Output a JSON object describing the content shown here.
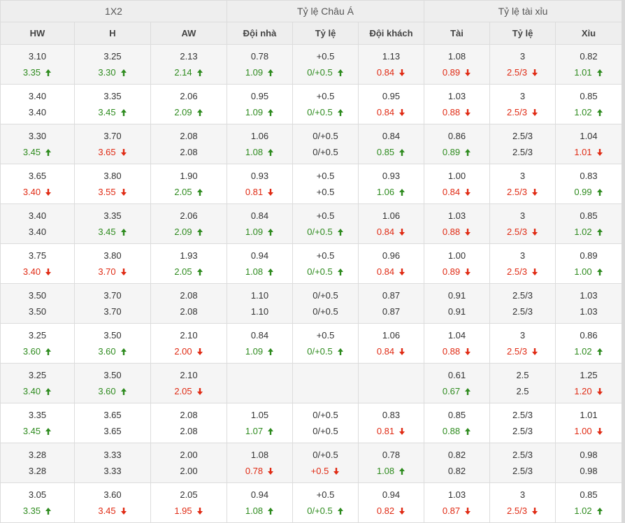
{
  "groups": [
    "1X2",
    "Tỷ lệ Châu Á",
    "Tỷ lệ tài xỉu"
  ],
  "columns": [
    "HW",
    "H",
    "AW",
    "Đội nhà",
    "Tỷ lệ",
    "Đội khách",
    "Tài",
    "Tỷ lệ",
    "Xỉu"
  ],
  "colors": {
    "up": "#2e8b1e",
    "down": "#e02a13",
    "header_bg": "#eeeeee",
    "row_alt_bg": "#f5f5f5"
  },
  "rows": [
    {
      "cells": [
        {
          "open": "3.10",
          "live": "3.35",
          "dir": "up"
        },
        {
          "open": "3.25",
          "live": "3.30",
          "dir": "up"
        },
        {
          "open": "2.13",
          "live": "2.14",
          "dir": "up"
        },
        {
          "open": "0.78",
          "live": "1.09",
          "dir": "up"
        },
        {
          "open": "+0.5",
          "live": "0/+0.5",
          "dir": "up"
        },
        {
          "open": "1.13",
          "live": "0.84",
          "dir": "down"
        },
        {
          "open": "1.08",
          "live": "0.89",
          "dir": "down"
        },
        {
          "open": "3",
          "live": "2.5/3",
          "dir": "down"
        },
        {
          "open": "0.82",
          "live": "1.01",
          "dir": "up"
        }
      ]
    },
    {
      "cells": [
        {
          "open": "3.40",
          "live": "3.40",
          "dir": ""
        },
        {
          "open": "3.35",
          "live": "3.45",
          "dir": "up"
        },
        {
          "open": "2.06",
          "live": "2.09",
          "dir": "up"
        },
        {
          "open": "0.95",
          "live": "1.09",
          "dir": "up"
        },
        {
          "open": "+0.5",
          "live": "0/+0.5",
          "dir": "up"
        },
        {
          "open": "0.95",
          "live": "0.84",
          "dir": "down"
        },
        {
          "open": "1.03",
          "live": "0.88",
          "dir": "down"
        },
        {
          "open": "3",
          "live": "2.5/3",
          "dir": "down"
        },
        {
          "open": "0.85",
          "live": "1.02",
          "dir": "up"
        }
      ]
    },
    {
      "cells": [
        {
          "open": "3.30",
          "live": "3.45",
          "dir": "up"
        },
        {
          "open": "3.70",
          "live": "3.65",
          "dir": "down"
        },
        {
          "open": "2.08",
          "live": "2.08",
          "dir": ""
        },
        {
          "open": "1.06",
          "live": "1.08",
          "dir": "up"
        },
        {
          "open": "0/+0.5",
          "live": "0/+0.5",
          "dir": ""
        },
        {
          "open": "0.84",
          "live": "0.85",
          "dir": "up"
        },
        {
          "open": "0.86",
          "live": "0.89",
          "dir": "up"
        },
        {
          "open": "2.5/3",
          "live": "2.5/3",
          "dir": ""
        },
        {
          "open": "1.04",
          "live": "1.01",
          "dir": "down"
        }
      ]
    },
    {
      "cells": [
        {
          "open": "3.65",
          "live": "3.40",
          "dir": "down"
        },
        {
          "open": "3.80",
          "live": "3.55",
          "dir": "down"
        },
        {
          "open": "1.90",
          "live": "2.05",
          "dir": "up"
        },
        {
          "open": "0.93",
          "live": "0.81",
          "dir": "down"
        },
        {
          "open": "+0.5",
          "live": "+0.5",
          "dir": ""
        },
        {
          "open": "0.93",
          "live": "1.06",
          "dir": "up"
        },
        {
          "open": "1.00",
          "live": "0.84",
          "dir": "down"
        },
        {
          "open": "3",
          "live": "2.5/3",
          "dir": "down"
        },
        {
          "open": "0.83",
          "live": "0.99",
          "dir": "up"
        }
      ]
    },
    {
      "cells": [
        {
          "open": "3.40",
          "live": "3.40",
          "dir": ""
        },
        {
          "open": "3.35",
          "live": "3.45",
          "dir": "up"
        },
        {
          "open": "2.06",
          "live": "2.09",
          "dir": "up"
        },
        {
          "open": "0.84",
          "live": "1.09",
          "dir": "up"
        },
        {
          "open": "+0.5",
          "live": "0/+0.5",
          "dir": "up"
        },
        {
          "open": "1.06",
          "live": "0.84",
          "dir": "down"
        },
        {
          "open": "1.03",
          "live": "0.88",
          "dir": "down"
        },
        {
          "open": "3",
          "live": "2.5/3",
          "dir": "down"
        },
        {
          "open": "0.85",
          "live": "1.02",
          "dir": "up"
        }
      ]
    },
    {
      "cells": [
        {
          "open": "3.75",
          "live": "3.40",
          "dir": "down"
        },
        {
          "open": "3.80",
          "live": "3.70",
          "dir": "down"
        },
        {
          "open": "1.93",
          "live": "2.05",
          "dir": "up"
        },
        {
          "open": "0.94",
          "live": "1.08",
          "dir": "up"
        },
        {
          "open": "+0.5",
          "live": "0/+0.5",
          "dir": "up"
        },
        {
          "open": "0.96",
          "live": "0.84",
          "dir": "down"
        },
        {
          "open": "1.00",
          "live": "0.89",
          "dir": "down"
        },
        {
          "open": "3",
          "live": "2.5/3",
          "dir": "down"
        },
        {
          "open": "0.89",
          "live": "1.00",
          "dir": "up"
        }
      ]
    },
    {
      "cells": [
        {
          "open": "3.50",
          "live": "3.50",
          "dir": ""
        },
        {
          "open": "3.70",
          "live": "3.70",
          "dir": ""
        },
        {
          "open": "2.08",
          "live": "2.08",
          "dir": ""
        },
        {
          "open": "1.10",
          "live": "1.10",
          "dir": ""
        },
        {
          "open": "0/+0.5",
          "live": "0/+0.5",
          "dir": ""
        },
        {
          "open": "0.87",
          "live": "0.87",
          "dir": ""
        },
        {
          "open": "0.91",
          "live": "0.91",
          "dir": ""
        },
        {
          "open": "2.5/3",
          "live": "2.5/3",
          "dir": ""
        },
        {
          "open": "1.03",
          "live": "1.03",
          "dir": ""
        }
      ]
    },
    {
      "cells": [
        {
          "open": "3.25",
          "live": "3.60",
          "dir": "up"
        },
        {
          "open": "3.50",
          "live": "3.60",
          "dir": "up"
        },
        {
          "open": "2.10",
          "live": "2.00",
          "dir": "down"
        },
        {
          "open": "0.84",
          "live": "1.09",
          "dir": "up"
        },
        {
          "open": "+0.5",
          "live": "0/+0.5",
          "dir": "up"
        },
        {
          "open": "1.06",
          "live": "0.84",
          "dir": "down"
        },
        {
          "open": "1.04",
          "live": "0.88",
          "dir": "down"
        },
        {
          "open": "3",
          "live": "2.5/3",
          "dir": "down"
        },
        {
          "open": "0.86",
          "live": "1.02",
          "dir": "up"
        }
      ]
    },
    {
      "cells": [
        {
          "open": "3.25",
          "live": "3.40",
          "dir": "up"
        },
        {
          "open": "3.50",
          "live": "3.60",
          "dir": "up"
        },
        {
          "open": "2.10",
          "live": "2.05",
          "dir": "down"
        },
        {
          "open": "",
          "live": "",
          "dir": ""
        },
        {
          "open": "",
          "live": "",
          "dir": ""
        },
        {
          "open": "",
          "live": "",
          "dir": ""
        },
        {
          "open": "0.61",
          "live": "0.67",
          "dir": "up"
        },
        {
          "open": "2.5",
          "live": "2.5",
          "dir": ""
        },
        {
          "open": "1.25",
          "live": "1.20",
          "dir": "down"
        }
      ]
    },
    {
      "cells": [
        {
          "open": "3.35",
          "live": "3.45",
          "dir": "up"
        },
        {
          "open": "3.65",
          "live": "3.65",
          "dir": ""
        },
        {
          "open": "2.08",
          "live": "2.08",
          "dir": ""
        },
        {
          "open": "1.05",
          "live": "1.07",
          "dir": "up"
        },
        {
          "open": "0/+0.5",
          "live": "0/+0.5",
          "dir": ""
        },
        {
          "open": "0.83",
          "live": "0.81",
          "dir": "down"
        },
        {
          "open": "0.85",
          "live": "0.88",
          "dir": "up"
        },
        {
          "open": "2.5/3",
          "live": "2.5/3",
          "dir": ""
        },
        {
          "open": "1.01",
          "live": "1.00",
          "dir": "down"
        }
      ]
    },
    {
      "cells": [
        {
          "open": "3.28",
          "live": "3.28",
          "dir": ""
        },
        {
          "open": "3.33",
          "live": "3.33",
          "dir": ""
        },
        {
          "open": "2.00",
          "live": "2.00",
          "dir": ""
        },
        {
          "open": "1.08",
          "live": "0.78",
          "dir": "down"
        },
        {
          "open": "0/+0.5",
          "live": "+0.5",
          "dir": "down"
        },
        {
          "open": "0.78",
          "live": "1.08",
          "dir": "up"
        },
        {
          "open": "0.82",
          "live": "0.82",
          "dir": ""
        },
        {
          "open": "2.5/3",
          "live": "2.5/3",
          "dir": ""
        },
        {
          "open": "0.98",
          "live": "0.98",
          "dir": ""
        }
      ]
    },
    {
      "cells": [
        {
          "open": "3.05",
          "live": "3.35",
          "dir": "up"
        },
        {
          "open": "3.60",
          "live": "3.45",
          "dir": "down"
        },
        {
          "open": "2.05",
          "live": "1.95",
          "dir": "down"
        },
        {
          "open": "0.94",
          "live": "1.08",
          "dir": "up"
        },
        {
          "open": "+0.5",
          "live": "0/+0.5",
          "dir": "up"
        },
        {
          "open": "0.94",
          "live": "0.82",
          "dir": "down"
        },
        {
          "open": "1.03",
          "live": "0.87",
          "dir": "down"
        },
        {
          "open": "3",
          "live": "2.5/3",
          "dir": "down"
        },
        {
          "open": "0.85",
          "live": "1.02",
          "dir": "up"
        }
      ]
    }
  ]
}
